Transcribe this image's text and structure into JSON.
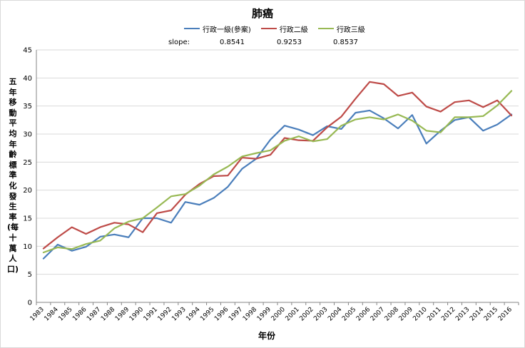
{
  "chart_data": {
    "type": "line",
    "title": "肺癌",
    "xlabel": "年份",
    "ylabel": "五年移動平均年齡標準化發生率(每十萬人口)",
    "ylim": [
      0,
      45
    ],
    "yticks": [
      0,
      5,
      10,
      15,
      20,
      25,
      30,
      35,
      40,
      45
    ],
    "grid": true,
    "legend_position": "top",
    "x": [
      "1983",
      "1984",
      "1985",
      "1986",
      "1987",
      "1988",
      "1989",
      "1990",
      "1991",
      "1992",
      "1993",
      "1994",
      "1995",
      "1996",
      "1997",
      "1998",
      "1999",
      "2000",
      "2001",
      "2002",
      "2003",
      "2004",
      "2005",
      "2006",
      "2007",
      "2008",
      "2009",
      "2010",
      "2011",
      "2012",
      "2013",
      "2014",
      "2015",
      "2016"
    ],
    "series": [
      {
        "name": "行政一級(參案)",
        "color": "#4a7ebb",
        "slope": "0.8541",
        "values": [
          7.8,
          10.3,
          9.2,
          9.9,
          11.7,
          12.1,
          11.6,
          15.0,
          15.0,
          14.2,
          17.9,
          17.4,
          18.6,
          20.6,
          23.8,
          25.6,
          29.0,
          31.5,
          30.8,
          29.8,
          31.4,
          30.9,
          33.8,
          34.2,
          32.8,
          31.0,
          33.4,
          28.3,
          30.6,
          32.5,
          33.0,
          30.6,
          31.7,
          33.5
        ]
      },
      {
        "name": "行政二級",
        "color": "#be4b48",
        "slope": "0.9253",
        "values": [
          9.6,
          11.6,
          13.4,
          12.2,
          13.4,
          14.2,
          13.9,
          12.5,
          15.9,
          16.4,
          19.2,
          21.1,
          22.5,
          22.6,
          25.8,
          25.6,
          26.3,
          29.3,
          28.9,
          28.8,
          31.2,
          33.1,
          36.3,
          39.3,
          38.9,
          36.8,
          37.4,
          34.9,
          34.0,
          35.7,
          36.0,
          34.8,
          36.0,
          33.3
        ]
      },
      {
        "name": "行政三級",
        "color": "#98b954",
        "slope": "0.8537",
        "values": [
          8.9,
          9.8,
          9.5,
          10.4,
          11.0,
          13.2,
          14.4,
          15.0,
          16.9,
          18.9,
          19.3,
          20.8,
          22.8,
          24.2,
          26.0,
          26.6,
          27.1,
          28.8,
          29.6,
          28.7,
          29.1,
          31.5,
          32.6,
          33.0,
          32.6,
          33.5,
          32.4,
          30.6,
          30.3,
          33.0,
          33.0,
          33.2,
          35.1,
          37.7
        ]
      }
    ]
  },
  "slope_label": "slope:"
}
